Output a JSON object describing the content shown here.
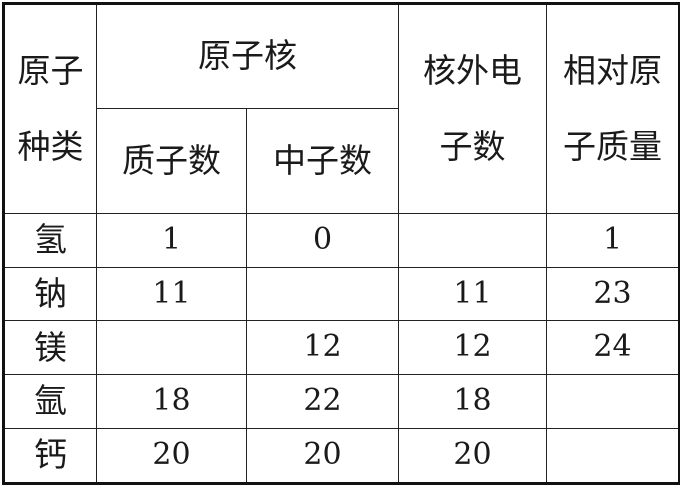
{
  "header": {
    "element_line1": "原子",
    "element_line2": "种类",
    "nucleus": "原子核",
    "protons": "质子数",
    "neutrons": "中子数",
    "electrons_line1": "核外电",
    "electrons_line2": "子数",
    "mass_line1": "相对原",
    "mass_line2": "子质量"
  },
  "rows": [
    {
      "element": "氢",
      "protons": "1",
      "neutrons": "0",
      "electrons": "",
      "mass": "1"
    },
    {
      "element": "钠",
      "protons": "11",
      "neutrons": "",
      "electrons": "11",
      "mass": "23"
    },
    {
      "element": "镁",
      "protons": "",
      "neutrons": "12",
      "electrons": "12",
      "mass": "24"
    },
    {
      "element": "氩",
      "protons": "18",
      "neutrons": "22",
      "electrons": "18",
      "mass": ""
    },
    {
      "element": "钙",
      "protons": "20",
      "neutrons": "20",
      "electrons": "20",
      "mass": ""
    }
  ]
}
